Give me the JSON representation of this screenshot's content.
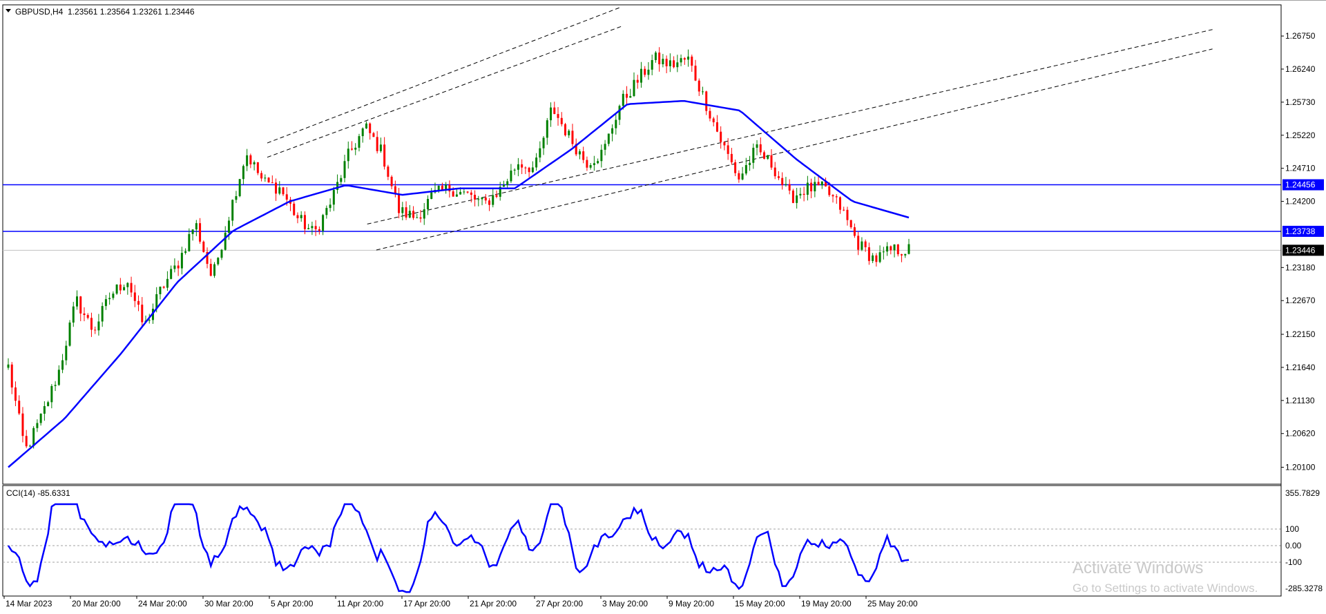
{
  "header": {
    "symbol": "GBPUSD,H4",
    "ohlc": "1.23561 1.23564 1.23261 1.23446"
  },
  "indicator": {
    "label": "CCI(14) -85.6331",
    "scale_labels": [
      "355.7829",
      "100",
      "0.00",
      "-100",
      "-285.3278"
    ]
  },
  "price_axis": {
    "labels": [
      "1.26750",
      "1.26240",
      "1.25730",
      "1.25220",
      "1.24710",
      "1.24200",
      "1.23180",
      "1.22670",
      "1.22150",
      "1.21640",
      "1.21130",
      "1.20620",
      "1.20100"
    ],
    "tags": [
      {
        "text": "1.24456",
        "color": "#0000ff"
      },
      {
        "text": "1.23738",
        "color": "#0000ff"
      },
      {
        "text": "1.23446",
        "color": "#000000"
      }
    ]
  },
  "time_axis": {
    "labels": [
      "14 Mar 2023",
      "20 Mar 20:00",
      "24 Mar 20:00",
      "30 Mar 20:00",
      "5 Apr 20:00",
      "11 Apr 20:00",
      "17 Apr 20:00",
      "21 Apr 20:00",
      "27 Apr 20:00",
      "3 May 20:00",
      "9 May 20:00",
      "15 May 20:00",
      "19 May 20:00",
      "25 May 20:00"
    ]
  },
  "watermark": {
    "line1": "Activate Windows",
    "line2": "Go to Settings to activate Windows."
  },
  "colors": {
    "bull": "#008000",
    "bear": "#ff0000",
    "ma": "#0000ff",
    "level": "#0000ff",
    "channel": "#000000"
  },
  "chart_data": {
    "type": "candlestick",
    "symbol": "GBPUSD",
    "timeframe": "H4",
    "price_range": [
      1.1985,
      1.2722
    ],
    "horizontal_levels": [
      1.24456,
      1.23738
    ],
    "current_price": 1.23446,
    "close_path": [
      {
        "time": "14 Mar 2023",
        "close": 1.2165
      },
      {
        "time": "15 Mar",
        "close": 1.2035
      },
      {
        "time": "16 Mar",
        "close": 1.209
      },
      {
        "time": "17 Mar",
        "close": 1.216
      },
      {
        "time": "20 Mar 20:00",
        "close": 1.2268
      },
      {
        "time": "21 Mar",
        "close": 1.222
      },
      {
        "time": "22 Mar",
        "close": 1.2275
      },
      {
        "time": "23 Mar",
        "close": 1.23
      },
      {
        "time": "24 Mar 20:00",
        "close": 1.2225
      },
      {
        "time": "27 Mar",
        "close": 1.2285
      },
      {
        "time": "28 Mar",
        "close": 1.2325
      },
      {
        "time": "29 Mar",
        "close": 1.2388
      },
      {
        "time": "30 Mar 20:00",
        "close": 1.23
      },
      {
        "time": "31 Mar",
        "close": 1.24
      },
      {
        "time": "3 Apr",
        "close": 1.2495
      },
      {
        "time": "4 Apr",
        "close": 1.245
      },
      {
        "time": "5 Apr 20:00",
        "close": 1.244
      },
      {
        "time": "6 Apr",
        "close": 1.2395
      },
      {
        "time": "7 Apr",
        "close": 1.237
      },
      {
        "time": "10 Apr",
        "close": 1.242
      },
      {
        "time": "11 Apr 20:00",
        "close": 1.249
      },
      {
        "time": "12 Apr",
        "close": 1.2535
      },
      {
        "time": "13 Apr",
        "close": 1.2495
      },
      {
        "time": "14 Apr",
        "close": 1.2405
      },
      {
        "time": "17 Apr 20:00",
        "close": 1.2395
      },
      {
        "time": "18 Apr",
        "close": 1.243
      },
      {
        "time": "19 Apr",
        "close": 1.244
      },
      {
        "time": "20 Apr",
        "close": 1.243
      },
      {
        "time": "21 Apr 20:00",
        "close": 1.2415
      },
      {
        "time": "24 Apr",
        "close": 1.244
      },
      {
        "time": "25 Apr",
        "close": 1.248
      },
      {
        "time": "26 Apr",
        "close": 1.247
      },
      {
        "time": "27 Apr 20:00",
        "close": 1.2565
      },
      {
        "time": "28 Apr",
        "close": 1.252
      },
      {
        "time": "1 May",
        "close": 1.248
      },
      {
        "time": "2 May",
        "close": 1.2495
      },
      {
        "time": "3 May 20:00",
        "close": 1.257
      },
      {
        "time": "4 May",
        "close": 1.2605
      },
      {
        "time": "5 May",
        "close": 1.264
      },
      {
        "time": "8 May",
        "close": 1.263
      },
      {
        "time": "9 May 20:00",
        "close": 1.264
      },
      {
        "time": "10 May",
        "close": 1.2575
      },
      {
        "time": "11 May",
        "close": 1.251
      },
      {
        "time": "12 May",
        "close": 1.2455
      },
      {
        "time": "15 May 20:00",
        "close": 1.25
      },
      {
        "time": "16 May",
        "close": 1.2475
      },
      {
        "time": "17 May",
        "close": 1.2425
      },
      {
        "time": "18 May",
        "close": 1.244
      },
      {
        "time": "19 May 20:00",
        "close": 1.244
      },
      {
        "time": "22 May",
        "close": 1.241
      },
      {
        "time": "23 May",
        "close": 1.2355
      },
      {
        "time": "24 May",
        "close": 1.233
      },
      {
        "time": "25 May 20:00",
        "close": 1.2345
      },
      {
        "time": "26 May",
        "close": 1.2345
      }
    ],
    "moving_average": [
      {
        "time": "14 Mar 2023",
        "value": 1.201
      },
      {
        "time": "20 Mar 20:00",
        "value": 1.2085
      },
      {
        "time": "24 Mar 20:00",
        "value": 1.2185
      },
      {
        "time": "30 Mar 20:00",
        "value": 1.2295
      },
      {
        "time": "5 Apr 20:00",
        "value": 1.2375
      },
      {
        "time": "11 Apr 20:00",
        "value": 1.242
      },
      {
        "time": "13 Apr",
        "value": 1.2445
      },
      {
        "time": "17 Apr 20:00",
        "value": 1.243
      },
      {
        "time": "21 Apr 20:00",
        "value": 1.244
      },
      {
        "time": "27 Apr 20:00",
        "value": 1.244
      },
      {
        "time": "3 May 20:00",
        "value": 1.25
      },
      {
        "time": "9 May 20:00",
        "value": 1.257
      },
      {
        "time": "10 May",
        "value": 1.2575
      },
      {
        "time": "15 May 20:00",
        "value": 1.256
      },
      {
        "time": "19 May 20:00",
        "value": 1.2485
      },
      {
        "time": "25 May 20:00",
        "value": 1.242
      },
      {
        "time": "26 May",
        "value": 1.2395
      }
    ],
    "cci": {
      "name": "CCI(14)",
      "last": -85.6331,
      "range": [
        -285.3278,
        355.7829
      ],
      "levels": [
        100,
        0,
        -100
      ]
    }
  }
}
